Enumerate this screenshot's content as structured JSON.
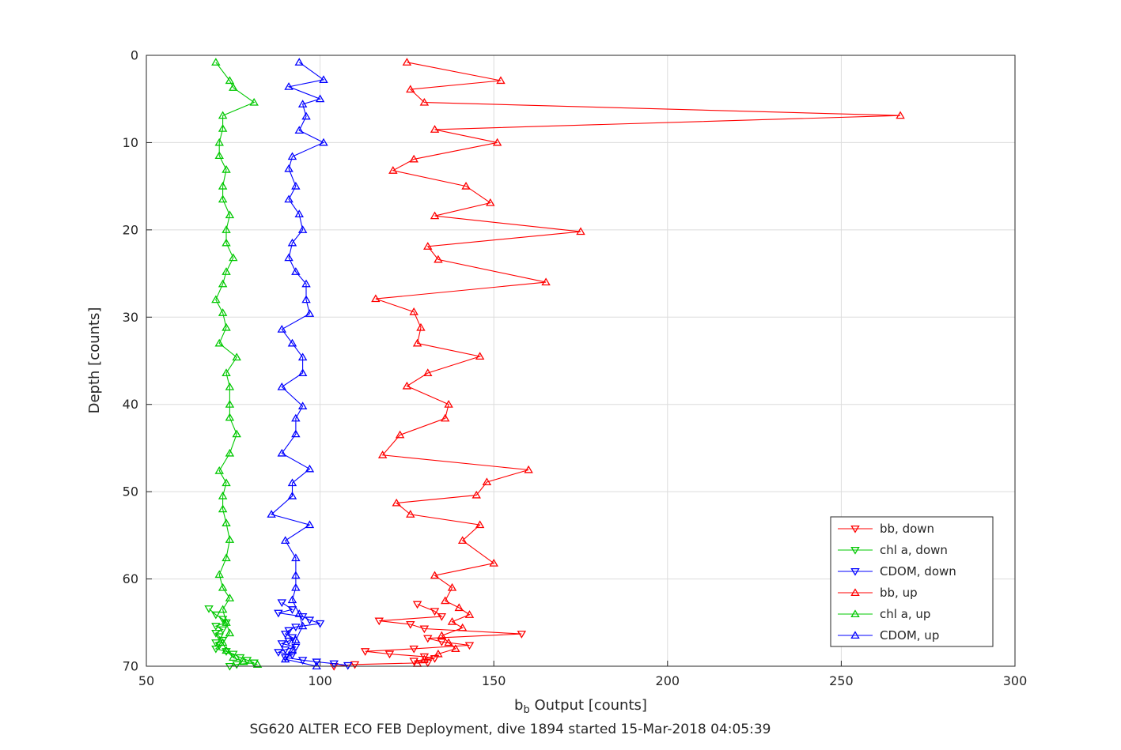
{
  "chart_data": {
    "type": "line",
    "title": "SG620 ALTER ECO FEB Deployment, dive 1894 started 15-Mar-2018 04:05:39",
    "xlabel": "b_b Output [counts]",
    "xlabel_parts": {
      "pre": "b",
      "sub": "b",
      "post": " Output [counts]"
    },
    "ylabel": "Depth [counts]",
    "xlim": [
      50,
      300
    ],
    "ylim": [
      0,
      70
    ],
    "y_axis_direction": "reverse",
    "xticks": [
      "50",
      "100",
      "150",
      "200",
      "250",
      "300"
    ],
    "yticks": [
      "0",
      "10",
      "20",
      "30",
      "40",
      "50",
      "60",
      "70"
    ],
    "grid": true,
    "legend_position": "middle-right",
    "colors": {
      "grid": "#dcdcdc",
      "axis": "#262626",
      "text": "#262626",
      "red": "#ff0000",
      "green": "#00c800",
      "blue": "#0000ff"
    },
    "series": [
      {
        "name": "bb, down",
        "color": "#ff0000",
        "marker": "triangle-down",
        "points": [
          [
            128,
            62.9
          ],
          [
            133,
            63.7
          ],
          [
            135,
            64.3
          ],
          [
            117,
            64.8
          ],
          [
            126,
            65.2
          ],
          [
            130,
            65.7
          ],
          [
            158,
            66.3
          ],
          [
            131,
            66.8
          ],
          [
            135,
            67.2
          ],
          [
            143,
            67.6
          ],
          [
            127,
            68.0
          ],
          [
            113,
            68.3
          ],
          [
            120,
            68.6
          ],
          [
            130,
            68.9
          ],
          [
            133,
            69.1
          ],
          [
            127,
            69.4
          ],
          [
            131,
            69.6
          ],
          [
            110,
            69.8
          ],
          [
            104,
            70.0
          ]
        ]
      },
      {
        "name": "chl a, down",
        "color": "#00c800",
        "marker": "triangle-down",
        "points": [
          [
            68,
            63.4
          ],
          [
            70,
            64.1
          ],
          [
            72,
            64.6
          ],
          [
            73,
            65.0
          ],
          [
            70,
            65.4
          ],
          [
            72,
            65.8
          ],
          [
            70,
            66.2
          ],
          [
            71,
            66.6
          ],
          [
            72,
            67.0
          ],
          [
            70,
            67.3
          ],
          [
            71,
            67.6
          ],
          [
            70,
            68.0
          ],
          [
            73,
            68.3
          ],
          [
            75,
            68.6
          ],
          [
            77,
            69.0
          ],
          [
            79,
            69.3
          ],
          [
            81,
            69.6
          ],
          [
            76,
            69.8
          ],
          [
            74,
            70.0
          ]
        ]
      },
      {
        "name": "CDOM, down",
        "color": "#0000ff",
        "marker": "triangle-down",
        "points": [
          [
            89,
            62.7
          ],
          [
            92,
            63.5
          ],
          [
            88,
            63.9
          ],
          [
            95,
            64.3
          ],
          [
            97,
            64.7
          ],
          [
            100,
            65.1
          ],
          [
            93,
            65.5
          ],
          [
            91,
            65.9
          ],
          [
            90,
            66.3
          ],
          [
            92,
            66.7
          ],
          [
            91,
            67.1
          ],
          [
            89,
            67.4
          ],
          [
            93,
            67.8
          ],
          [
            90,
            68.1
          ],
          [
            88,
            68.4
          ],
          [
            92,
            68.7
          ],
          [
            90,
            69.0
          ],
          [
            95,
            69.3
          ],
          [
            99,
            69.5
          ],
          [
            104,
            69.7
          ],
          [
            108,
            69.9
          ]
        ]
      },
      {
        "name": "bb, up",
        "color": "#ff0000",
        "marker": "triangle-up",
        "points": [
          [
            125,
            0.8
          ],
          [
            152,
            2.9
          ],
          [
            126,
            3.9
          ],
          [
            130,
            5.4
          ],
          [
            267,
            6.9
          ],
          [
            133,
            8.5
          ],
          [
            151,
            10.0
          ],
          [
            127,
            11.9
          ],
          [
            121,
            13.2
          ],
          [
            142,
            15.0
          ],
          [
            149,
            16.9
          ],
          [
            133,
            18.4
          ],
          [
            175,
            20.2
          ],
          [
            131,
            21.9
          ],
          [
            134,
            23.4
          ],
          [
            165,
            26.0
          ],
          [
            116,
            27.9
          ],
          [
            127,
            29.4
          ],
          [
            129,
            31.2
          ],
          [
            128,
            33.0
          ],
          [
            146,
            34.5
          ],
          [
            131,
            36.4
          ],
          [
            125,
            37.9
          ],
          [
            137,
            40.0
          ],
          [
            136,
            41.6
          ],
          [
            123,
            43.5
          ],
          [
            118,
            45.8
          ],
          [
            160,
            47.5
          ],
          [
            148,
            48.9
          ],
          [
            145,
            50.4
          ],
          [
            122,
            51.3
          ],
          [
            126,
            52.6
          ],
          [
            146,
            53.8
          ],
          [
            141,
            55.6
          ],
          [
            150,
            58.2
          ],
          [
            133,
            59.6
          ],
          [
            138,
            61.0
          ],
          [
            136,
            62.5
          ],
          [
            140,
            63.3
          ],
          [
            143,
            64.1
          ],
          [
            138,
            64.9
          ],
          [
            141,
            65.6
          ],
          [
            135,
            66.5
          ],
          [
            137,
            67.3
          ],
          [
            139,
            68.0
          ],
          [
            134,
            68.6
          ],
          [
            130,
            69.2
          ],
          [
            128,
            69.7
          ]
        ]
      },
      {
        "name": "chl a, up",
        "color": "#00c800",
        "marker": "triangle-up",
        "points": [
          [
            70,
            0.8
          ],
          [
            74,
            2.9
          ],
          [
            75,
            3.7
          ],
          [
            81,
            5.4
          ],
          [
            72,
            6.9
          ],
          [
            72,
            8.4
          ],
          [
            71,
            10.0
          ],
          [
            71,
            11.5
          ],
          [
            73,
            13.1
          ],
          [
            72,
            15.0
          ],
          [
            72,
            16.5
          ],
          [
            74,
            18.3
          ],
          [
            73,
            20.0
          ],
          [
            73,
            21.5
          ],
          [
            75,
            23.2
          ],
          [
            73,
            24.8
          ],
          [
            72,
            26.2
          ],
          [
            70,
            28.0
          ],
          [
            72,
            29.5
          ],
          [
            73,
            31.2
          ],
          [
            71,
            33.0
          ],
          [
            76,
            34.6
          ],
          [
            73,
            36.4
          ],
          [
            74,
            38.0
          ],
          [
            74,
            40.0
          ],
          [
            74,
            41.5
          ],
          [
            76,
            43.4
          ],
          [
            74,
            45.6
          ],
          [
            71,
            47.6
          ],
          [
            73,
            49.0
          ],
          [
            72,
            50.5
          ],
          [
            72,
            52.0
          ],
          [
            73,
            53.6
          ],
          [
            74,
            55.5
          ],
          [
            73,
            57.6
          ],
          [
            71,
            59.5
          ],
          [
            72,
            61.0
          ],
          [
            74,
            62.2
          ],
          [
            72,
            63.5
          ],
          [
            73,
            65.0
          ],
          [
            74,
            66.2
          ],
          [
            72,
            67.3
          ],
          [
            73,
            68.2
          ],
          [
            75,
            69.0
          ],
          [
            78,
            69.5
          ],
          [
            82,
            69.8
          ]
        ]
      },
      {
        "name": "CDOM, up",
        "color": "#0000ff",
        "marker": "triangle-up",
        "points": [
          [
            94,
            0.8
          ],
          [
            101,
            2.8
          ],
          [
            91,
            3.6
          ],
          [
            100,
            5.0
          ],
          [
            95,
            5.6
          ],
          [
            96,
            7.0
          ],
          [
            94,
            8.6
          ],
          [
            101,
            10.0
          ],
          [
            92,
            11.6
          ],
          [
            91,
            13.0
          ],
          [
            93,
            15.0
          ],
          [
            91,
            16.5
          ],
          [
            94,
            18.2
          ],
          [
            95,
            20.0
          ],
          [
            92,
            21.5
          ],
          [
            91,
            23.2
          ],
          [
            93,
            24.8
          ],
          [
            96,
            26.2
          ],
          [
            96,
            28.0
          ],
          [
            97,
            29.6
          ],
          [
            89,
            31.4
          ],
          [
            92,
            33.0
          ],
          [
            95,
            34.6
          ],
          [
            95,
            36.4
          ],
          [
            89,
            38.0
          ],
          [
            95,
            40.2
          ],
          [
            93,
            41.6
          ],
          [
            93,
            43.4
          ],
          [
            89,
            45.6
          ],
          [
            97,
            47.4
          ],
          [
            92,
            49.0
          ],
          [
            92,
            50.5
          ],
          [
            86,
            52.6
          ],
          [
            97,
            53.8
          ],
          [
            90,
            55.6
          ],
          [
            93,
            57.6
          ],
          [
            93,
            59.6
          ],
          [
            93,
            61.0
          ],
          [
            92,
            62.4
          ],
          [
            94,
            64.0
          ],
          [
            95,
            65.4
          ],
          [
            93,
            67.0
          ],
          [
            92,
            68.2
          ],
          [
            90,
            69.2
          ],
          [
            99,
            70.0
          ]
        ]
      }
    ],
    "legend": {
      "entries": [
        "bb, down",
        "chl a, down",
        "CDOM, down",
        "bb, up",
        "chl a, up",
        "CDOM, up"
      ]
    }
  }
}
